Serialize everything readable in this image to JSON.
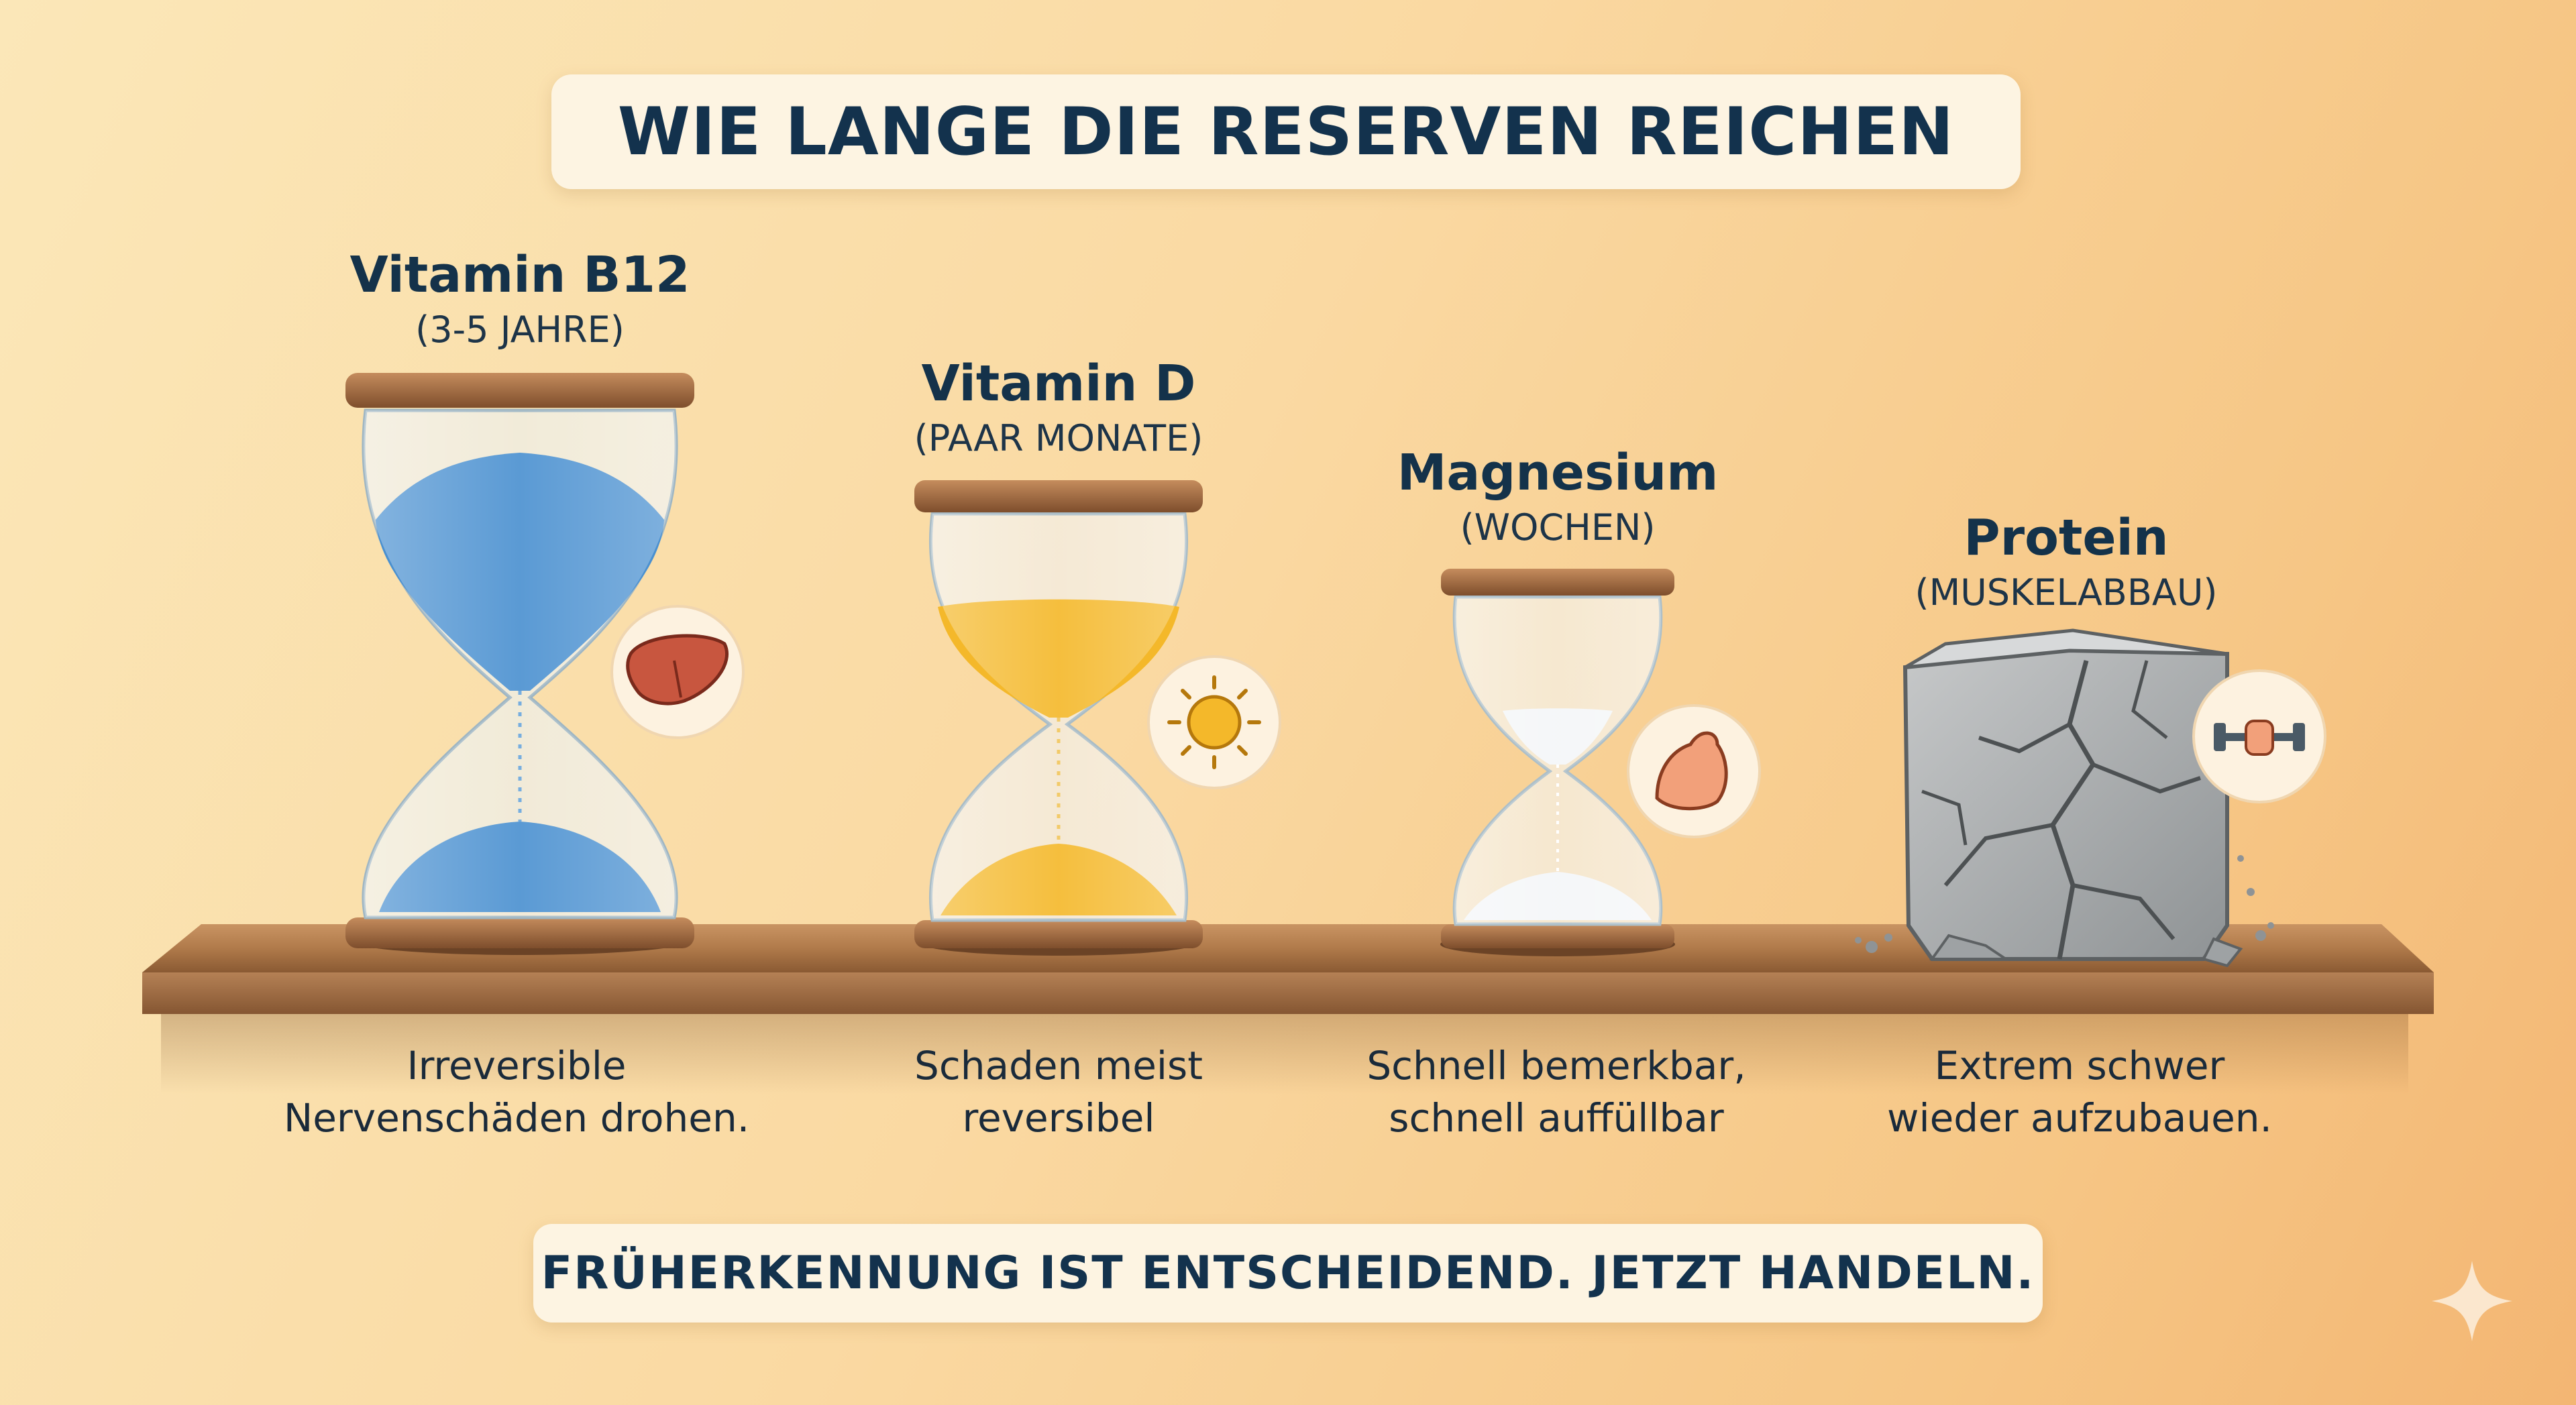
{
  "title": "WIE LANGE DIE RESERVEN REICHEN",
  "items": [
    {
      "name": "Vitamin B12",
      "duration": "(3-5 JAHRE)",
      "caption_line1": "Irreversible",
      "caption_line2": "Nervenschäden drohen.",
      "visual": "hourglass",
      "icon": "liver-icon",
      "sand_color": "#4a90d0"
    },
    {
      "name": "Vitamin D",
      "duration": "(PAAR MONATE)",
      "caption_line1": "Schaden meist",
      "caption_line2": "reversibel",
      "visual": "hourglass",
      "icon": "sun-icon",
      "sand_color": "#f4b82a"
    },
    {
      "name": "Magnesium",
      "duration": "(WOCHEN)",
      "caption_line1": "Schnell bemerkbar,",
      "caption_line2": "schnell auffüllbar",
      "visual": "hourglass",
      "icon": "flexed-arm-icon",
      "sand_color": "#f4f6f8"
    },
    {
      "name": "Protein",
      "duration": "(MUSKELABBAU)",
      "caption_line1": "Extrem schwer",
      "caption_line2": "wieder aufzubauen.",
      "visual": "crumbling-stone-block",
      "icon": "dumbbell-fist-icon"
    }
  ],
  "footer": "FRÜHERKENNUNG IST ENTSCHEIDEND. JETZT HANDELN.",
  "colors": {
    "text": "#14324a",
    "wood": "#b07a4a",
    "background": "#fad9a2"
  }
}
